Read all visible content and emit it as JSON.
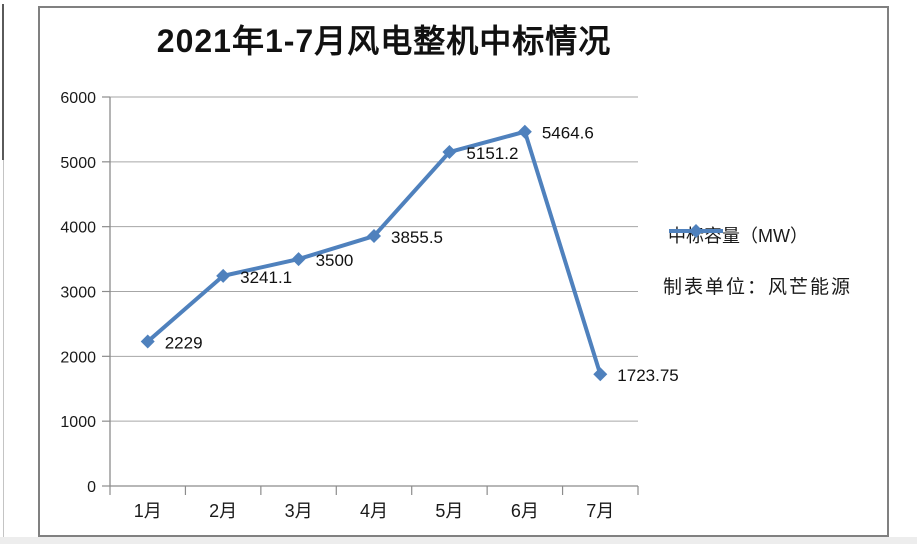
{
  "chart_data": {
    "type": "line",
    "title": "2021年1-7月风电整机中标情况",
    "categories": [
      "1月",
      "2月",
      "3月",
      "4月",
      "5月",
      "6月",
      "7月"
    ],
    "series": [
      {
        "name": "中标容量（MW）",
        "values": [
          2229,
          3241.1,
          3500,
          3855.5,
          5151.2,
          5464.6,
          1723.75
        ]
      }
    ],
    "data_labels": [
      "2229",
      "3241.1",
      "3500",
      "3855.5",
      "5151.2",
      "5464.6",
      "1723.75"
    ],
    "xlabel": "",
    "ylabel": "",
    "ylim": [
      0,
      6000
    ],
    "ytick_interval": 1000,
    "yticks": [
      "0",
      "1000",
      "2000",
      "3000",
      "4000",
      "5000",
      "6000"
    ],
    "grid": "horizontal",
    "legend_position": "right",
    "marker": "diamond",
    "annotation": "制表单位：风芒能源",
    "colors": {
      "line": "#4f81bd",
      "gridline": "#a6a6a6",
      "axis": "#8c8c8c",
      "frame_border": "#808080"
    }
  }
}
